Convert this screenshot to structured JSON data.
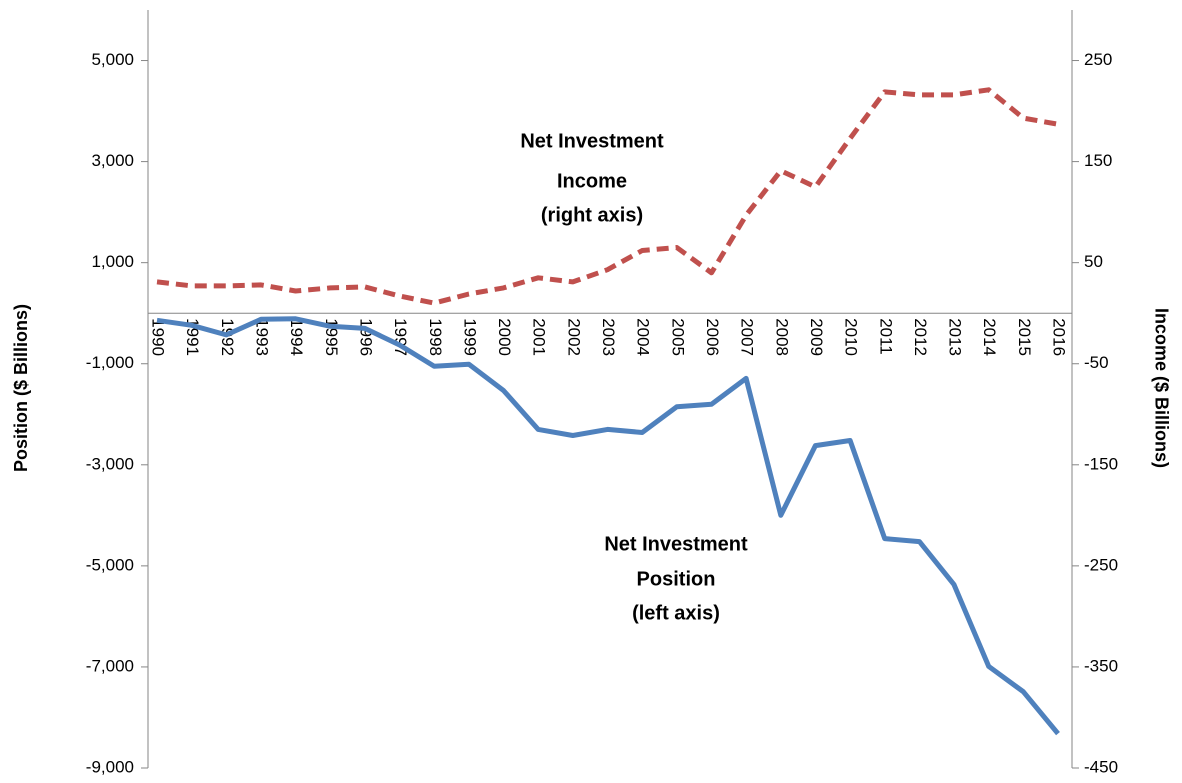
{
  "chart_data": {
    "type": "line",
    "categories": [
      "1990",
      "1991",
      "1992",
      "1993",
      "1994",
      "1995",
      "1996",
      "1997",
      "1998",
      "1999",
      "2000",
      "2001",
      "2002",
      "2003",
      "2004",
      "2005",
      "2006",
      "2007",
      "2008",
      "2009",
      "2010",
      "2011",
      "2012",
      "2013",
      "2014",
      "2015",
      "2016"
    ],
    "series": [
      {
        "color": "#4f81bd",
        "line_style": "solid",
        "axis": "y",
        "values": [
          -140,
          -240,
          -430,
          -120,
          -110,
          -260,
          -300,
          -630,
          -1050,
          -1010,
          -1530,
          -2300,
          -2420,
          -2300,
          -2360,
          -1850,
          -1800,
          -1290,
          -4000,
          -2620,
          -2520,
          -4460,
          -4520,
          -5370,
          -6990,
          -7490,
          -8320
        ]
      },
      {
        "color": "#c0504d",
        "line_style": "dashed",
        "axis": "y2",
        "values": [
          31,
          27,
          27,
          28,
          22,
          25,
          26,
          17,
          10,
          19,
          25,
          35,
          31,
          43,
          62,
          65,
          40,
          97,
          141,
          125,
          173,
          219,
          216,
          216,
          221,
          193,
          187
        ]
      }
    ],
    "ylabel": "Position ($ Billions)",
    "y2label": "Income ($ Billions)",
    "ylim": [
      -9000,
      6000
    ],
    "yticks": [
      {
        "value": -9000,
        "label": "-9,000"
      },
      {
        "value": -7000,
        "label": "-7,000"
      },
      {
        "value": -5000,
        "label": "-5,000"
      },
      {
        "value": -3000,
        "label": "-3,000"
      },
      {
        "value": -1000,
        "label": "-1,000"
      },
      {
        "value": 1000,
        "label": "1,000"
      },
      {
        "value": 3000,
        "label": "3,000"
      },
      {
        "value": 5000,
        "label": "5,000"
      }
    ],
    "y2lim": [
      -450,
      300
    ],
    "y2ticks": [
      -450,
      -350,
      -250,
      -150,
      -50,
      50,
      150,
      250
    ],
    "annotations": [
      {
        "lines": [
          "Net Investment",
          "Income",
          "(right axis)"
        ]
      },
      {
        "lines": [
          "Net Investment",
          "Position",
          "(left axis)"
        ]
      }
    ]
  }
}
